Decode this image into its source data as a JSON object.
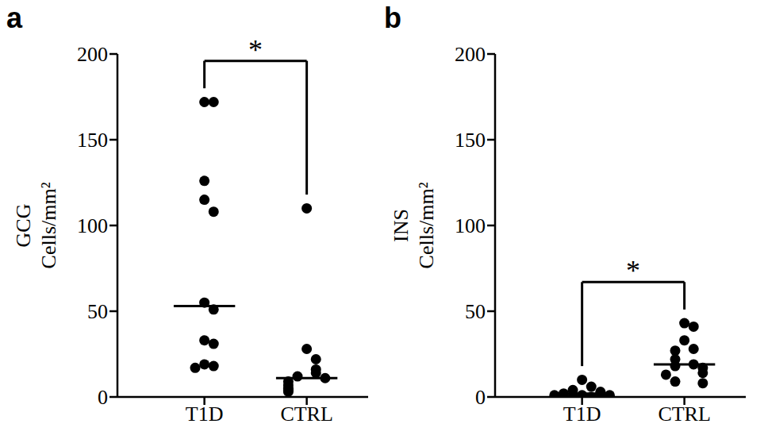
{
  "chart_data": [
    {
      "type": "scatter",
      "title": "a",
      "y_label": [
        "GCG",
        "Cells/mm²"
      ],
      "categories": [
        "T1D",
        "CTRL"
      ],
      "values": [
        [
          172,
          172,
          126,
          115,
          108,
          55,
          51,
          33,
          31,
          19,
          18,
          17
        ],
        [
          110,
          28,
          22,
          16,
          14,
          12,
          11,
          9,
          7,
          5,
          4,
          3
        ]
      ],
      "medians": [
        53,
        11
      ],
      "ylim": [
        0,
        200
      ],
      "yticks": [
        0,
        50,
        100,
        150,
        200
      ],
      "color": "#000000",
      "marker": "circle",
      "annotations": [
        {
          "text": "*",
          "between": [
            "T1D",
            "CTRL"
          ]
        }
      ]
    },
    {
      "type": "scatter",
      "title": "b",
      "y_label": [
        "INS",
        "Cells/mm²"
      ],
      "categories": [
        "T1D",
        "CTRL"
      ],
      "values": [
        [
          10,
          6,
          4,
          3,
          2,
          2,
          1,
          1,
          1,
          0,
          0
        ],
        [
          43,
          41,
          33,
          28,
          27,
          22,
          19,
          18,
          17,
          14,
          13,
          9,
          8
        ]
      ],
      "medians": [
        2,
        19
      ],
      "ylim": [
        0,
        200
      ],
      "yticks": [
        0,
        50,
        100,
        150,
        200
      ],
      "color": "#000000",
      "marker": "circle",
      "annotations": [
        {
          "text": "*",
          "between": [
            "T1D",
            "CTRL"
          ]
        }
      ]
    }
  ]
}
